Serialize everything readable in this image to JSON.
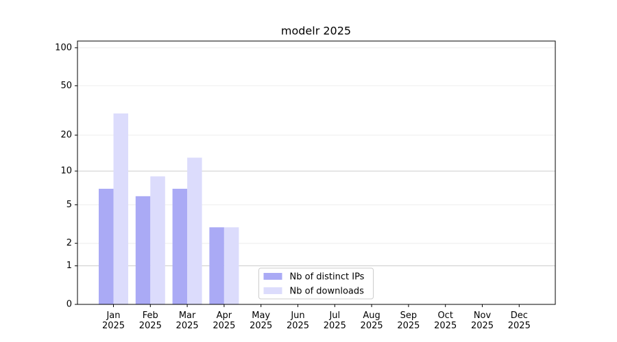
{
  "chart_data": {
    "type": "bar",
    "title": "modelr 2025",
    "categories": [
      "Jan 2025",
      "Feb 2025",
      "Mar 2025",
      "Apr 2025",
      "May 2025",
      "Jun 2025",
      "Jul 2025",
      "Aug 2025",
      "Sep 2025",
      "Oct 2025",
      "Nov 2025",
      "Dec 2025"
    ],
    "series": [
      {
        "name": "Nb of distinct IPs",
        "color": "#aaaaf5",
        "values": [
          7,
          6,
          7,
          3,
          null,
          null,
          null,
          null,
          null,
          null,
          null,
          null
        ]
      },
      {
        "name": "Nb of downloads",
        "color": "#dcdcfc",
        "values": [
          30,
          9,
          13,
          3,
          null,
          null,
          null,
          null,
          null,
          null,
          null,
          null
        ]
      }
    ],
    "yscale": "log1p",
    "ylim": [
      0,
      113
    ],
    "yticks": [
      0,
      1,
      2,
      5,
      10,
      20,
      50,
      100
    ],
    "grid": true,
    "legend": "lower center"
  }
}
